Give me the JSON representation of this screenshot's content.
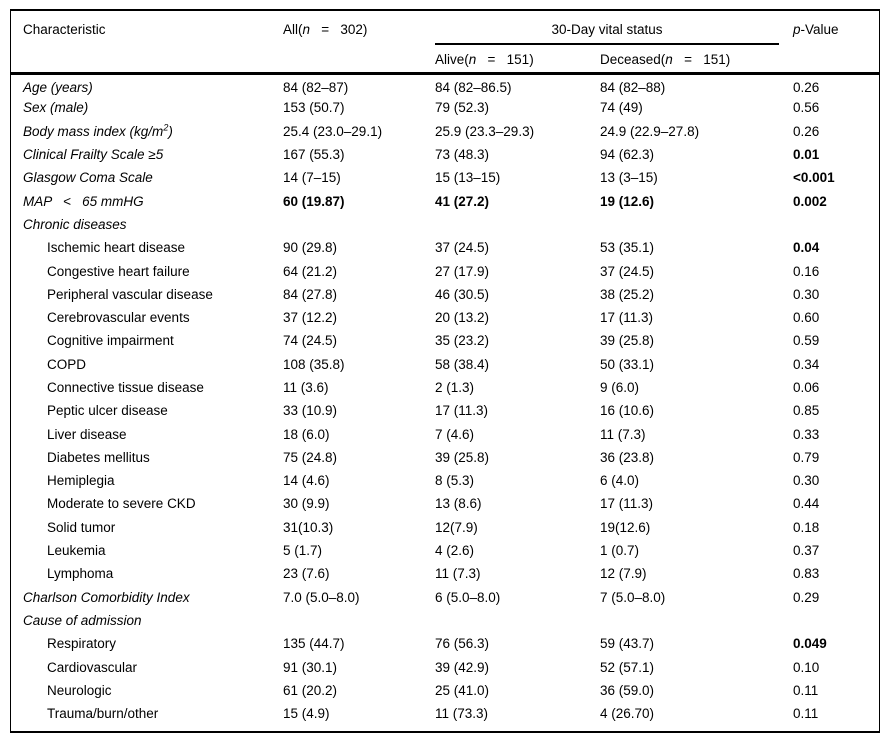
{
  "colors": {
    "text": "#000000",
    "rule": "#000000",
    "background": "#ffffff"
  },
  "table": {
    "header": {
      "characteristic": "Characteristic",
      "all_prefix": "All(",
      "all_n": "n",
      "all_rest": "   =   302)",
      "span_label": "30-Day vital status",
      "alive_prefix": "Alive(",
      "alive_n": "n",
      "alive_rest": "   =   151)",
      "deceased_prefix": "Deceased(",
      "deceased_n": "n",
      "deceased_rest": "   =   151)",
      "p_italic": "p",
      "p_rest": "-Value"
    },
    "rows": [
      {
        "label": "Age (years)",
        "italic": true,
        "indent": 0,
        "section": false,
        "all": "84 (82–87)",
        "alive": "84 (82–86.5)",
        "deceased": "84 (82–88)",
        "p": "0.26",
        "values_bold": false,
        "p_bold": false
      },
      {
        "label": "Sex (male)",
        "italic": true,
        "indent": 0,
        "section": false,
        "all": "153 (50.7)",
        "alive": "79 (52.3)",
        "deceased": "74 (49)",
        "p": "0.56",
        "values_bold": false,
        "p_bold": false
      },
      {
        "label": "Body mass index (kg/m",
        "label_sup": "2",
        "label_suffix": ")",
        "italic": true,
        "indent": 0,
        "section": false,
        "all": "25.4 (23.0–29.1)",
        "alive": "25.9 (23.3–29.3)",
        "deceased": "24.9 (22.9–27.8)",
        "p": "0.26",
        "values_bold": false,
        "p_bold": false
      },
      {
        "label": "Clinical Frailty Scale ≥5",
        "italic": true,
        "indent": 0,
        "section": false,
        "all": "167 (55.3)",
        "alive": "73 (48.3)",
        "deceased": "94 (62.3)",
        "p": "0.01",
        "values_bold": false,
        "p_bold": true
      },
      {
        "label": "Glasgow Coma Scale",
        "italic": true,
        "indent": 0,
        "section": false,
        "all": "14 (7–15)",
        "alive": "15 (13–15)",
        "deceased": "13 (3–15)",
        "p": "<0.001",
        "values_bold": false,
        "p_bold": true
      },
      {
        "label": "MAP   <   65 mmHG",
        "italic": true,
        "indent": 0,
        "section": false,
        "all": "60 (19.87)",
        "alive": "41 (27.2)",
        "deceased": "19 (12.6)",
        "p": "0.002",
        "values_bold": true,
        "p_bold": true
      },
      {
        "label": "Chronic diseases",
        "italic": true,
        "indent": 0,
        "section": true,
        "all": "",
        "alive": "",
        "deceased": "",
        "p": "",
        "values_bold": false,
        "p_bold": false
      },
      {
        "label": "Ischemic heart disease",
        "italic": false,
        "indent": 1,
        "section": false,
        "all": "90 (29.8)",
        "alive": "37 (24.5)",
        "deceased": "53 (35.1)",
        "p": "0.04",
        "values_bold": false,
        "p_bold": true
      },
      {
        "label": "Congestive heart failure",
        "italic": false,
        "indent": 1,
        "section": false,
        "all": "64 (21.2)",
        "alive": "27 (17.9)",
        "deceased": "37 (24.5)",
        "p": "0.16",
        "values_bold": false,
        "p_bold": false
      },
      {
        "label": "Peripheral vascular disease",
        "italic": false,
        "indent": 1,
        "section": false,
        "all": "84 (27.8)",
        "alive": "46 (30.5)",
        "deceased": "38 (25.2)",
        "p": "0.30",
        "values_bold": false,
        "p_bold": false
      },
      {
        "label": "Cerebrovascular events",
        "italic": false,
        "indent": 1,
        "section": false,
        "all": "37 (12.2)",
        "alive": "20 (13.2)",
        "deceased": "17 (11.3)",
        "p": "0.60",
        "values_bold": false,
        "p_bold": false
      },
      {
        "label": "Cognitive impairment",
        "italic": false,
        "indent": 1,
        "section": false,
        "all": "74 (24.5)",
        "alive": "35 (23.2)",
        "deceased": "39 (25.8)",
        "p": "0.59",
        "values_bold": false,
        "p_bold": false
      },
      {
        "label": "COPD",
        "italic": false,
        "indent": 1,
        "section": false,
        "all": "108 (35.8)",
        "alive": "58 (38.4)",
        "deceased": "50 (33.1)",
        "p": "0.34",
        "values_bold": false,
        "p_bold": false
      },
      {
        "label": "Connective tissue disease",
        "italic": false,
        "indent": 1,
        "section": false,
        "all": "11 (3.6)",
        "alive": "2 (1.3)",
        "deceased": "9 (6.0)",
        "p": "0.06",
        "values_bold": false,
        "p_bold": false
      },
      {
        "label": "Peptic ulcer disease",
        "italic": false,
        "indent": 1,
        "section": false,
        "all": "33 (10.9)",
        "alive": "17 (11.3)",
        "deceased": "16 (10.6)",
        "p": "0.85",
        "values_bold": false,
        "p_bold": false
      },
      {
        "label": "Liver disease",
        "italic": false,
        "indent": 1,
        "section": false,
        "all": "18 (6.0)",
        "alive": "7 (4.6)",
        "deceased": "11 (7.3)",
        "p": "0.33",
        "values_bold": false,
        "p_bold": false
      },
      {
        "label": "Diabetes mellitus",
        "italic": false,
        "indent": 1,
        "section": false,
        "all": "75 (24.8)",
        "alive": "39 (25.8)",
        "deceased": "36 (23.8)",
        "p": "0.79",
        "values_bold": false,
        "p_bold": false
      },
      {
        "label": "Hemiplegia",
        "italic": false,
        "indent": 1,
        "section": false,
        "all": "14 (4.6)",
        "alive": "8 (5.3)",
        "deceased": "6 (4.0)",
        "p": "0.30",
        "values_bold": false,
        "p_bold": false
      },
      {
        "label": "Moderate to severe CKD",
        "italic": false,
        "indent": 1,
        "section": false,
        "all": "30 (9.9)",
        "alive": "13 (8.6)",
        "deceased": "17 (11.3)",
        "p": "0.44",
        "values_bold": false,
        "p_bold": false
      },
      {
        "label": "Solid tumor",
        "italic": false,
        "indent": 1,
        "section": false,
        "all": "31(10.3)",
        "alive": "12(7.9)",
        "deceased": "19(12.6)",
        "p": "0.18",
        "values_bold": false,
        "p_bold": false
      },
      {
        "label": "Leukemia",
        "italic": false,
        "indent": 1,
        "section": false,
        "all": "5 (1.7)",
        "alive": "4 (2.6)",
        "deceased": "1 (0.7)",
        "p": "0.37",
        "values_bold": false,
        "p_bold": false
      },
      {
        "label": "Lymphoma",
        "italic": false,
        "indent": 1,
        "section": false,
        "all": "23 (7.6)",
        "alive": "11 (7.3)",
        "deceased": "12 (7.9)",
        "p": "0.83",
        "values_bold": false,
        "p_bold": false
      },
      {
        "label": "Charlson Comorbidity Index",
        "italic": true,
        "indent": 0,
        "section": false,
        "all": "7.0 (5.0–8.0)",
        "alive": "6 (5.0–8.0)",
        "deceased": "7 (5.0–8.0)",
        "p": "0.29",
        "values_bold": false,
        "p_bold": false
      },
      {
        "label": "Cause of admission",
        "italic": true,
        "indent": 0,
        "section": true,
        "all": "",
        "alive": "",
        "deceased": "",
        "p": "",
        "values_bold": false,
        "p_bold": false
      },
      {
        "label": "Respiratory",
        "italic": false,
        "indent": 1,
        "section": false,
        "all": "135 (44.7)",
        "alive": "76 (56.3)",
        "deceased": "59 (43.7)",
        "p": "0.049",
        "values_bold": false,
        "p_bold": true
      },
      {
        "label": "Cardiovascular",
        "italic": false,
        "indent": 1,
        "section": false,
        "all": "91 (30.1)",
        "alive": "39 (42.9)",
        "deceased": "52 (57.1)",
        "p": "0.10",
        "values_bold": false,
        "p_bold": false
      },
      {
        "label": "Neurologic",
        "italic": false,
        "indent": 1,
        "section": false,
        "all": "61 (20.2)",
        "alive": "25 (41.0)",
        "deceased": "36 (59.0)",
        "p": "0.11",
        "values_bold": false,
        "p_bold": false
      },
      {
        "label": "Trauma/burn/other",
        "italic": false,
        "indent": 1,
        "section": false,
        "all": "15 (4.9)",
        "alive": "11 (73.3)",
        "deceased": "4 (26.70)",
        "p": "0.11",
        "values_bold": false,
        "p_bold": false
      }
    ]
  }
}
